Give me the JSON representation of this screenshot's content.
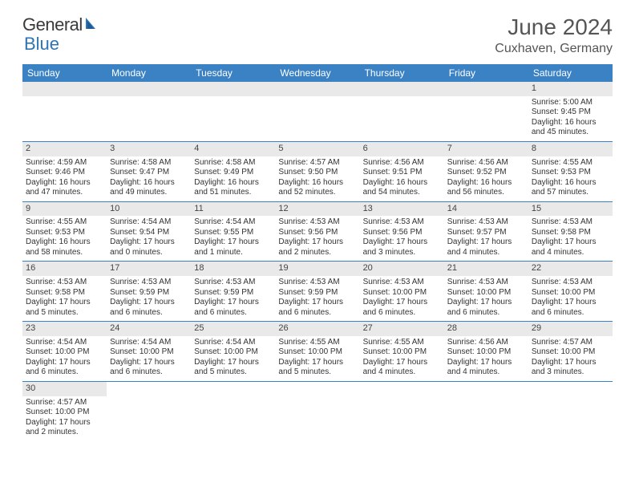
{
  "brand": {
    "part1": "General",
    "part2": "Blue"
  },
  "title": "June 2024",
  "location": "Cuxhaven, Germany",
  "colors": {
    "header_bg": "#3b82c4",
    "header_text": "#ffffff",
    "daynum_bg": "#e9e9e9",
    "row_divider": "#3b82c4",
    "title_color": "#555555",
    "body_text": "#333333",
    "background": "#ffffff"
  },
  "typography": {
    "title_fontsize": 28,
    "location_fontsize": 16,
    "dayheader_fontsize": 12,
    "cell_fontsize": 10
  },
  "day_headers": [
    "Sunday",
    "Monday",
    "Tuesday",
    "Wednesday",
    "Thursday",
    "Friday",
    "Saturday"
  ],
  "weeks": [
    [
      null,
      null,
      null,
      null,
      null,
      null,
      {
        "n": "1",
        "sr": "Sunrise: 5:00 AM",
        "ss": "Sunset: 9:45 PM",
        "dl": "Daylight: 16 hours and 45 minutes."
      }
    ],
    [
      {
        "n": "2",
        "sr": "Sunrise: 4:59 AM",
        "ss": "Sunset: 9:46 PM",
        "dl": "Daylight: 16 hours and 47 minutes."
      },
      {
        "n": "3",
        "sr": "Sunrise: 4:58 AM",
        "ss": "Sunset: 9:47 PM",
        "dl": "Daylight: 16 hours and 49 minutes."
      },
      {
        "n": "4",
        "sr": "Sunrise: 4:58 AM",
        "ss": "Sunset: 9:49 PM",
        "dl": "Daylight: 16 hours and 51 minutes."
      },
      {
        "n": "5",
        "sr": "Sunrise: 4:57 AM",
        "ss": "Sunset: 9:50 PM",
        "dl": "Daylight: 16 hours and 52 minutes."
      },
      {
        "n": "6",
        "sr": "Sunrise: 4:56 AM",
        "ss": "Sunset: 9:51 PM",
        "dl": "Daylight: 16 hours and 54 minutes."
      },
      {
        "n": "7",
        "sr": "Sunrise: 4:56 AM",
        "ss": "Sunset: 9:52 PM",
        "dl": "Daylight: 16 hours and 56 minutes."
      },
      {
        "n": "8",
        "sr": "Sunrise: 4:55 AM",
        "ss": "Sunset: 9:53 PM",
        "dl": "Daylight: 16 hours and 57 minutes."
      }
    ],
    [
      {
        "n": "9",
        "sr": "Sunrise: 4:55 AM",
        "ss": "Sunset: 9:53 PM",
        "dl": "Daylight: 16 hours and 58 minutes."
      },
      {
        "n": "10",
        "sr": "Sunrise: 4:54 AM",
        "ss": "Sunset: 9:54 PM",
        "dl": "Daylight: 17 hours and 0 minutes."
      },
      {
        "n": "11",
        "sr": "Sunrise: 4:54 AM",
        "ss": "Sunset: 9:55 PM",
        "dl": "Daylight: 17 hours and 1 minute."
      },
      {
        "n": "12",
        "sr": "Sunrise: 4:53 AM",
        "ss": "Sunset: 9:56 PM",
        "dl": "Daylight: 17 hours and 2 minutes."
      },
      {
        "n": "13",
        "sr": "Sunrise: 4:53 AM",
        "ss": "Sunset: 9:56 PM",
        "dl": "Daylight: 17 hours and 3 minutes."
      },
      {
        "n": "14",
        "sr": "Sunrise: 4:53 AM",
        "ss": "Sunset: 9:57 PM",
        "dl": "Daylight: 17 hours and 4 minutes."
      },
      {
        "n": "15",
        "sr": "Sunrise: 4:53 AM",
        "ss": "Sunset: 9:58 PM",
        "dl": "Daylight: 17 hours and 4 minutes."
      }
    ],
    [
      {
        "n": "16",
        "sr": "Sunrise: 4:53 AM",
        "ss": "Sunset: 9:58 PM",
        "dl": "Daylight: 17 hours and 5 minutes."
      },
      {
        "n": "17",
        "sr": "Sunrise: 4:53 AM",
        "ss": "Sunset: 9:59 PM",
        "dl": "Daylight: 17 hours and 6 minutes."
      },
      {
        "n": "18",
        "sr": "Sunrise: 4:53 AM",
        "ss": "Sunset: 9:59 PM",
        "dl": "Daylight: 17 hours and 6 minutes."
      },
      {
        "n": "19",
        "sr": "Sunrise: 4:53 AM",
        "ss": "Sunset: 9:59 PM",
        "dl": "Daylight: 17 hours and 6 minutes."
      },
      {
        "n": "20",
        "sr": "Sunrise: 4:53 AM",
        "ss": "Sunset: 10:00 PM",
        "dl": "Daylight: 17 hours and 6 minutes."
      },
      {
        "n": "21",
        "sr": "Sunrise: 4:53 AM",
        "ss": "Sunset: 10:00 PM",
        "dl": "Daylight: 17 hours and 6 minutes."
      },
      {
        "n": "22",
        "sr": "Sunrise: 4:53 AM",
        "ss": "Sunset: 10:00 PM",
        "dl": "Daylight: 17 hours and 6 minutes."
      }
    ],
    [
      {
        "n": "23",
        "sr": "Sunrise: 4:54 AM",
        "ss": "Sunset: 10:00 PM",
        "dl": "Daylight: 17 hours and 6 minutes."
      },
      {
        "n": "24",
        "sr": "Sunrise: 4:54 AM",
        "ss": "Sunset: 10:00 PM",
        "dl": "Daylight: 17 hours and 6 minutes."
      },
      {
        "n": "25",
        "sr": "Sunrise: 4:54 AM",
        "ss": "Sunset: 10:00 PM",
        "dl": "Daylight: 17 hours and 5 minutes."
      },
      {
        "n": "26",
        "sr": "Sunrise: 4:55 AM",
        "ss": "Sunset: 10:00 PM",
        "dl": "Daylight: 17 hours and 5 minutes."
      },
      {
        "n": "27",
        "sr": "Sunrise: 4:55 AM",
        "ss": "Sunset: 10:00 PM",
        "dl": "Daylight: 17 hours and 4 minutes."
      },
      {
        "n": "28",
        "sr": "Sunrise: 4:56 AM",
        "ss": "Sunset: 10:00 PM",
        "dl": "Daylight: 17 hours and 4 minutes."
      },
      {
        "n": "29",
        "sr": "Sunrise: 4:57 AM",
        "ss": "Sunset: 10:00 PM",
        "dl": "Daylight: 17 hours and 3 minutes."
      }
    ],
    [
      {
        "n": "30",
        "sr": "Sunrise: 4:57 AM",
        "ss": "Sunset: 10:00 PM",
        "dl": "Daylight: 17 hours and 2 minutes."
      },
      null,
      null,
      null,
      null,
      null,
      null
    ]
  ]
}
